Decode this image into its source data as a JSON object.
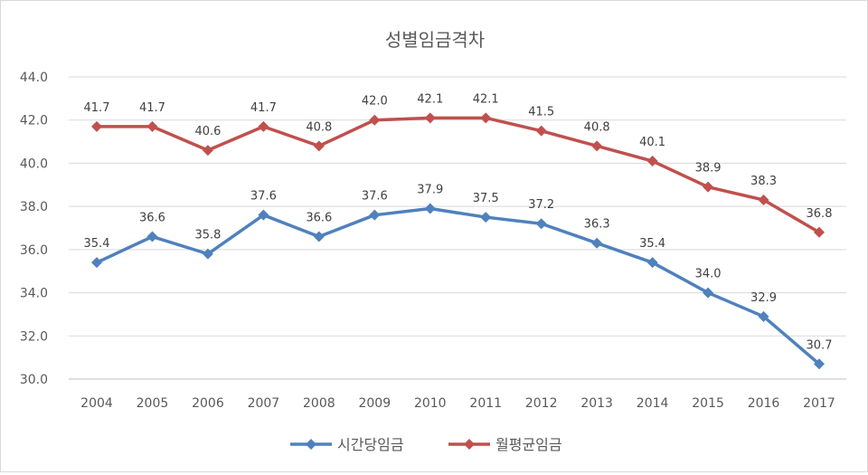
{
  "chart_data": {
    "type": "line",
    "title": "성별임금격차",
    "categories": [
      "2004",
      "2005",
      "2006",
      "2007",
      "2008",
      "2009",
      "2010",
      "2011",
      "2012",
      "2013",
      "2014",
      "2015",
      "2016",
      "2017"
    ],
    "series": [
      {
        "name": "시간당임금",
        "color": "#4F81BD",
        "marker": "diamond",
        "values": [
          35.4,
          36.6,
          35.8,
          37.6,
          36.6,
          37.6,
          37.9,
          37.5,
          37.2,
          36.3,
          35.4,
          34.0,
          32.9,
          30.7
        ]
      },
      {
        "name": "월평균임금",
        "color": "#C0504D",
        "marker": "diamond",
        "values": [
          41.7,
          41.7,
          40.6,
          41.7,
          40.8,
          42.0,
          42.1,
          42.1,
          41.5,
          40.8,
          40.1,
          38.9,
          38.3,
          36.8
        ]
      }
    ],
    "ylim": [
      30,
      44
    ],
    "yticks": [
      "30.0",
      "32.0",
      "34.0",
      "36.0",
      "38.0",
      "40.0",
      "42.0",
      "44.0"
    ],
    "grid": true,
    "data_labels": true,
    "legend": "bottom"
  }
}
